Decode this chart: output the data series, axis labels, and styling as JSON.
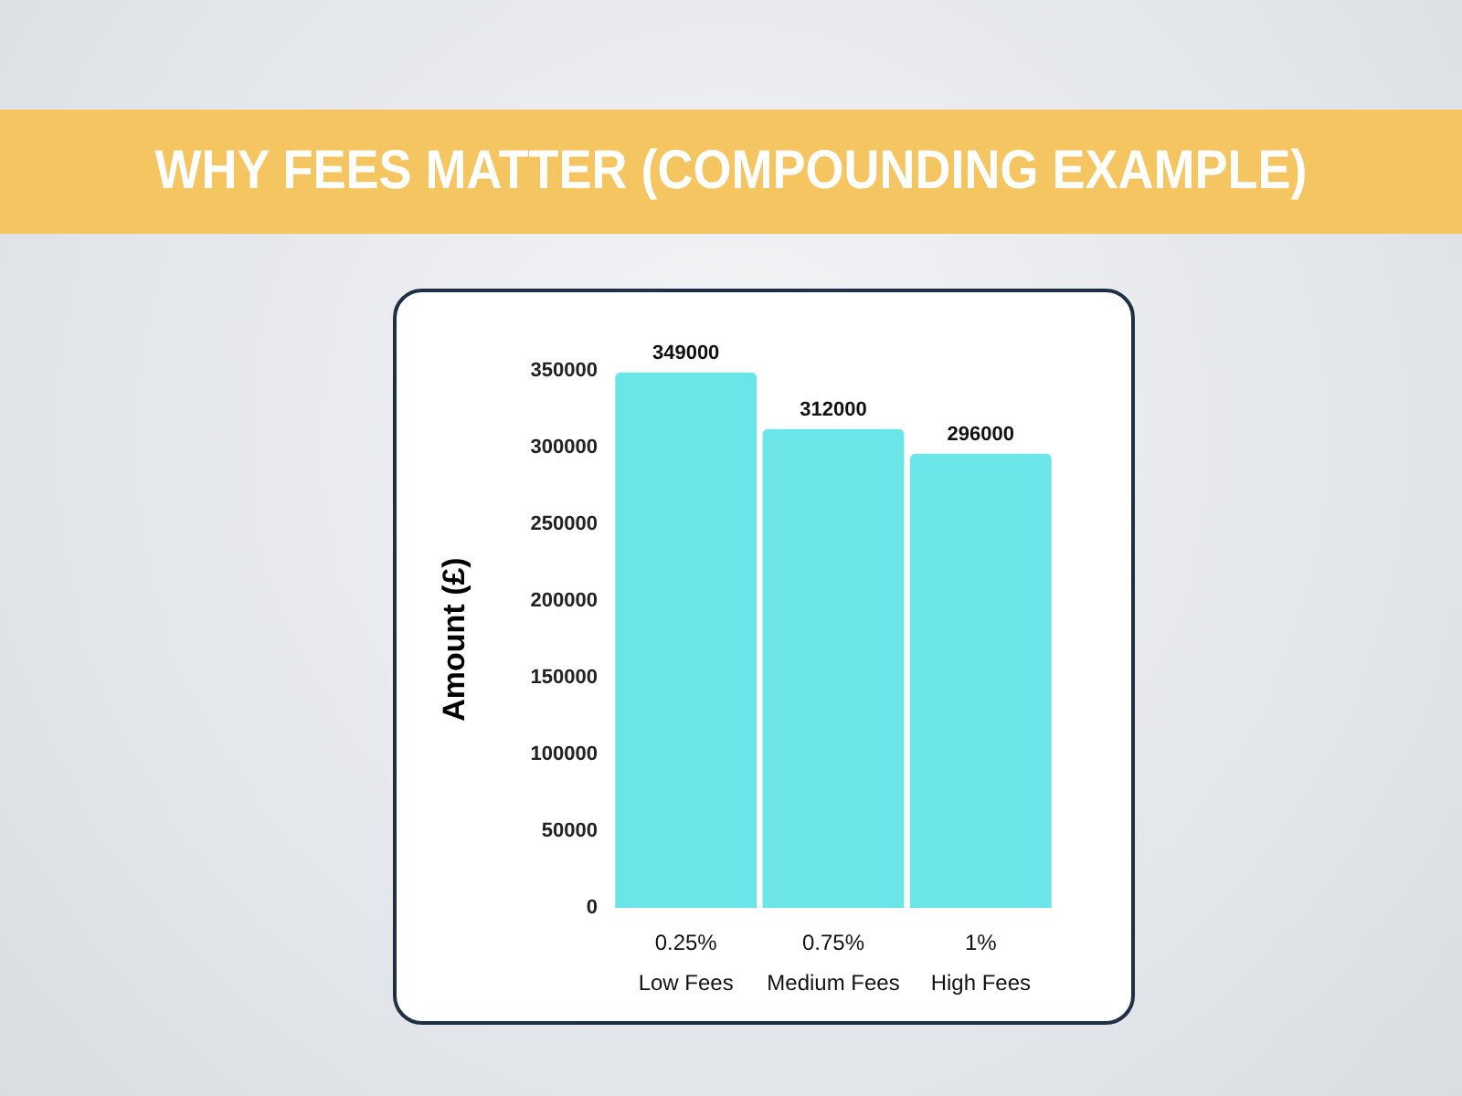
{
  "chart_data": {
    "type": "bar",
    "title": "WHY FEES MATTER (COMPOUNDING EXAMPLE)",
    "ylabel": "Amount (£)",
    "categories": [
      "0.25%\nLow Fees",
      "0.75%\nMedium Fees",
      "1%\nHigh Fees"
    ],
    "values": [
      349000,
      312000,
      296000
    ],
    "color": "#6ce5e8",
    "data_labels": true,
    "ylim": [
      0,
      350000
    ],
    "yticks": [
      0,
      50000,
      100000,
      150000,
      200000,
      250000,
      300000,
      350000
    ],
    "grid": false
  }
}
